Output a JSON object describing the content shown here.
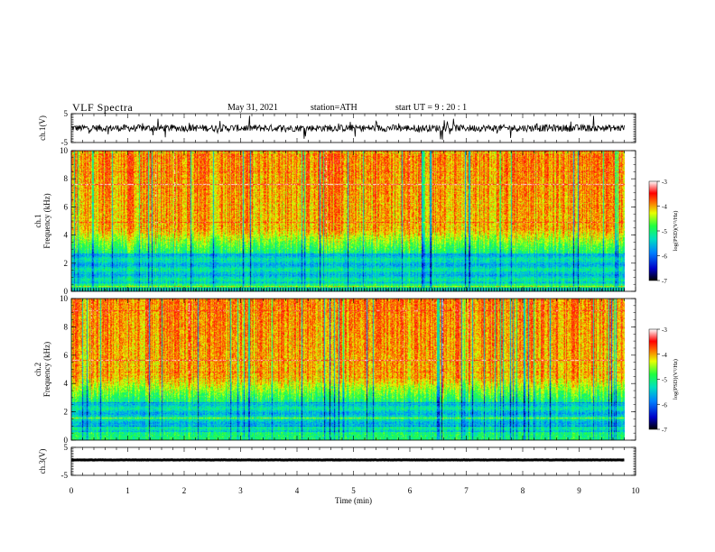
{
  "header": {
    "title": "VLF  Spectra",
    "date": "May 31, 2021",
    "station": "station=ATH",
    "start": "start  UT  =    9  : 20 : 1"
  },
  "colors": {
    "cmap": [
      "#000000",
      "#0000ff",
      "#00aaff",
      "#00ff80",
      "#ffff00",
      "#ff0000",
      "#ffffff"
    ],
    "trace": "#000000",
    "background": "#ffffff"
  },
  "chart_data": [
    {
      "type": "line",
      "name": "ch1-waveform",
      "ylabel": "ch.1(V)",
      "ylim": [
        -5,
        5
      ],
      "yticks": [
        "5",
        "-5"
      ],
      "x_range": [
        0,
        9.8
      ],
      "baseline": 0,
      "noise_amplitude": 1.2
    },
    {
      "type": "heatmap",
      "name": "ch1-spectrogram",
      "ylabel_lines": [
        "ch.1",
        "Frequency  (kHz)"
      ],
      "ylim": [
        0,
        10
      ],
      "yticks": [
        "0",
        "2",
        "4",
        "6",
        "8",
        "10"
      ],
      "x_range": [
        0,
        9.8
      ],
      "colorbar": {
        "label": "log(PSD)(V²/Hz)",
        "range": [
          -7,
          -3
        ],
        "ticks": [
          "-3",
          "-4",
          "-5",
          "-6",
          "-7"
        ]
      }
    },
    {
      "type": "heatmap",
      "name": "ch2-spectrogram",
      "ylabel_lines": [
        "ch.2",
        "Frequency  (kHz)"
      ],
      "ylim": [
        0,
        10
      ],
      "yticks": [
        "0",
        "2",
        "4",
        "6",
        "8",
        "10"
      ],
      "x_range": [
        0,
        9.8
      ],
      "colorbar": {
        "label": "log(PSD)(V²/Hz)",
        "range": [
          -7,
          -3
        ],
        "ticks": [
          "-3",
          "-4",
          "-5",
          "-6",
          "-7"
        ]
      }
    },
    {
      "type": "line",
      "name": "ch3-waveform",
      "ylabel": "ch.3(V)",
      "ylim": [
        -5,
        5
      ],
      "yticks": [
        "5",
        "-5"
      ],
      "x_range": [
        0,
        9.8
      ],
      "baseline": 0.5,
      "noise_amplitude": 0.05
    }
  ],
  "xaxis": {
    "label": "Time  (min)",
    "ticks": [
      "0",
      "1",
      "2",
      "3",
      "4",
      "5",
      "6",
      "7",
      "8",
      "9",
      "10"
    ],
    "range": [
      0,
      10
    ]
  }
}
